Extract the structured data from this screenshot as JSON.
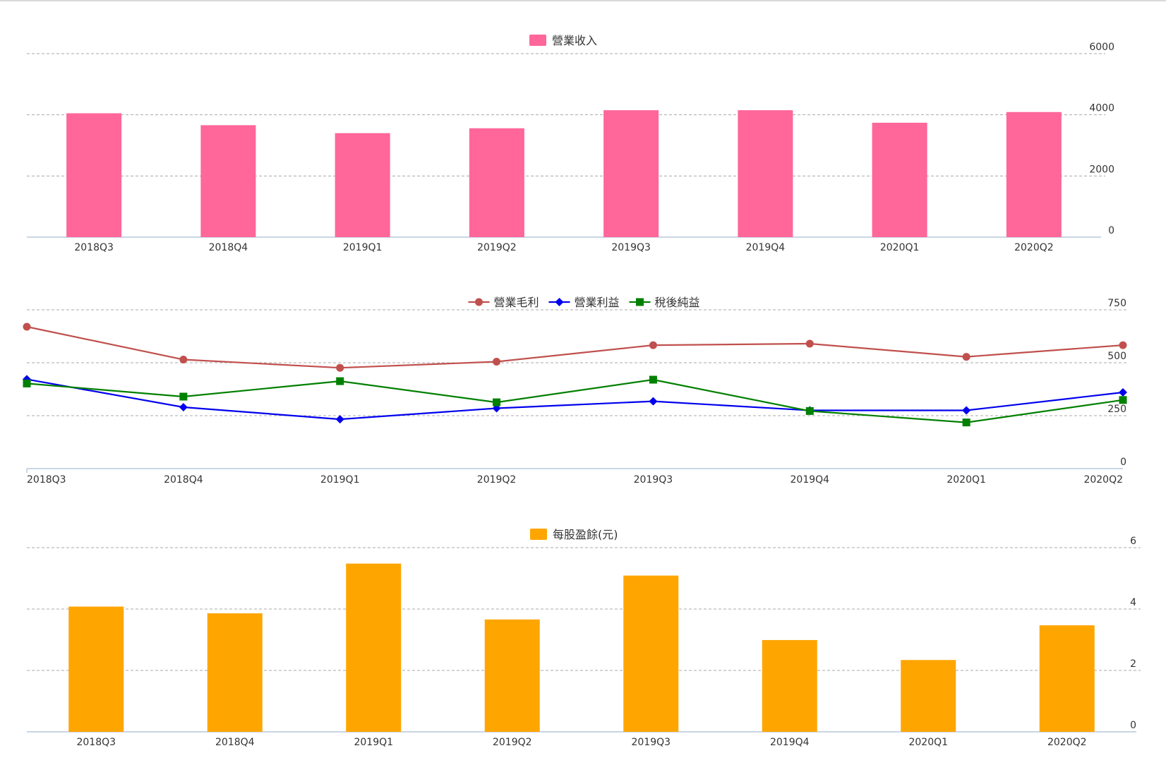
{
  "chart_data": [
    {
      "type": "bar",
      "categories": [
        "2018Q3",
        "2018Q4",
        "2019Q1",
        "2019Q2",
        "2019Q3",
        "2019Q4",
        "2020Q1",
        "2020Q2"
      ],
      "series": [
        {
          "name": "營業收入",
          "color": "#ff6699",
          "values": [
            4050,
            3660,
            3400,
            3560,
            4150,
            4150,
            3740,
            4090
          ]
        }
      ],
      "ylim": [
        0,
        6000
      ],
      "yticks": [
        0,
        2000,
        4000,
        6000
      ],
      "grid": true,
      "legend": "top-center"
    },
    {
      "type": "line",
      "categories": [
        "2018Q3",
        "2018Q4",
        "2019Q1",
        "2019Q2",
        "2019Q3",
        "2019Q4",
        "2020Q1",
        "2020Q2"
      ],
      "series": [
        {
          "name": "營業毛利",
          "color": "#c0504d",
          "marker": "circle",
          "values": [
            670,
            515,
            476,
            505,
            583,
            590,
            528,
            583
          ]
        },
        {
          "name": "營業利益",
          "color": "#0000ee",
          "marker": "diamond",
          "values": [
            422,
            290,
            233,
            285,
            318,
            275,
            275,
            360
          ]
        },
        {
          "name": "稅後純益",
          "color": "#008000",
          "marker": "square",
          "values": [
            402,
            340,
            413,
            313,
            420,
            272,
            218,
            324
          ]
        }
      ],
      "ylim": [
        0,
        750
      ],
      "yticks": [
        0,
        250,
        500,
        750
      ],
      "grid": true,
      "legend": "top-center"
    },
    {
      "type": "bar",
      "categories": [
        "2018Q3",
        "2018Q4",
        "2019Q1",
        "2019Q2",
        "2019Q3",
        "2019Q4",
        "2020Q1",
        "2020Q2"
      ],
      "series": [
        {
          "name": "每股盈餘(元)",
          "color": "#ffa500",
          "values": [
            4.08,
            3.86,
            5.48,
            3.66,
            5.09,
            2.99,
            2.34,
            3.47
          ]
        }
      ],
      "ylim": [
        0,
        6
      ],
      "yticks": [
        0,
        2,
        4,
        6
      ],
      "grid": true,
      "legend": "top-center"
    }
  ]
}
